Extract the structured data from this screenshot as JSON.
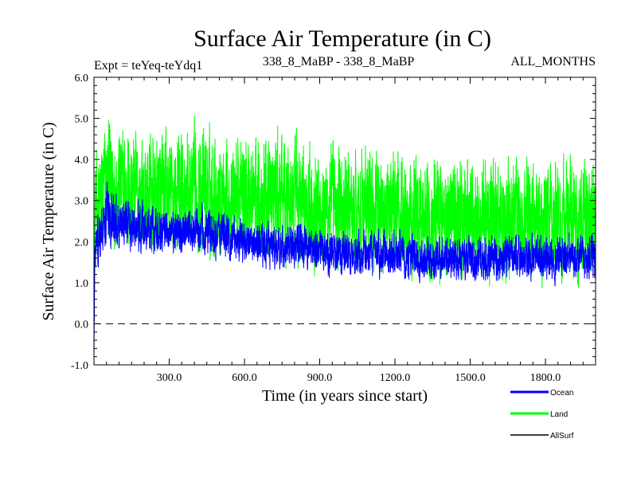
{
  "chart_data": {
    "type": "line",
    "title": "Surface Air Temperature (in C)",
    "subtitle_left": "Expt = teYeq-teYdq1",
    "subtitle_center": "338_8_MaBP - 338_8_MaBP",
    "subtitle_right": "ALL_MONTHS",
    "xlabel": "Time (in years since start)",
    "ylabel": "Surface Air Temperature (in C)",
    "xlim": [
      0,
      2000
    ],
    "ylim": [
      -1.0,
      6.0
    ],
    "xticks": [
      300,
      600,
      900,
      1200,
      1500,
      1800
    ],
    "xtick_labels": [
      "300.0",
      "600.0",
      "900.0",
      "1200.0",
      "1500.0",
      "1800.0"
    ],
    "yticks": [
      -1.0,
      0.0,
      1.0,
      2.0,
      3.0,
      4.0,
      5.0,
      6.0
    ],
    "ytick_labels": [
      "-1.0",
      "0.0",
      "1.0",
      "2.0",
      "3.0",
      "4.0",
      "5.0",
      "6.0"
    ],
    "reference_line": 0.0,
    "legend_position": "bottom-right",
    "colors": {
      "Ocean": "#0000ff",
      "Land": "#00ff00",
      "AllSurf": "#000000"
    },
    "series": [
      {
        "name": "Land",
        "x": [
          0,
          50,
          100,
          200,
          300,
          400,
          500,
          600,
          700,
          800,
          900,
          1000,
          1100,
          1200,
          1300,
          1400,
          1500,
          1600,
          1700,
          1800,
          1900,
          2000
        ],
        "mean": [
          2.6,
          3.4,
          3.3,
          3.1,
          3.1,
          3.2,
          3.2,
          3.1,
          3.1,
          3.0,
          2.9,
          2.8,
          2.8,
          2.7,
          2.7,
          2.6,
          2.6,
          2.6,
          2.6,
          2.5,
          2.5,
          2.5
        ],
        "spread": [
          1.7,
          2.1,
          2.0,
          2.0,
          2.0,
          2.0,
          2.0,
          2.0,
          2.0,
          2.0,
          2.0,
          1.9,
          1.9,
          1.9,
          1.9,
          1.9,
          1.9,
          1.9,
          1.9,
          1.9,
          1.9,
          1.9
        ]
      },
      {
        "name": "Ocean",
        "x": [
          0,
          50,
          100,
          200,
          300,
          400,
          500,
          600,
          700,
          800,
          900,
          1000,
          1100,
          1200,
          1300,
          1400,
          1500,
          1600,
          1700,
          1800,
          1900,
          2000
        ],
        "mean": [
          1.6,
          2.6,
          2.5,
          2.3,
          2.2,
          2.3,
          2.2,
          2.0,
          1.9,
          1.9,
          1.8,
          1.7,
          1.7,
          1.7,
          1.6,
          1.6,
          1.6,
          1.6,
          1.6,
          1.6,
          1.6,
          1.6
        ],
        "spread": [
          1.0,
          0.9,
          0.85,
          0.8,
          0.75,
          0.75,
          0.75,
          0.7,
          0.7,
          0.7,
          0.7,
          0.7,
          0.7,
          0.7,
          0.7,
          0.7,
          0.7,
          0.7,
          0.7,
          0.7,
          0.7,
          0.7
        ]
      },
      {
        "name": "AllSurf",
        "x": [],
        "mean": [],
        "spread": []
      }
    ]
  }
}
